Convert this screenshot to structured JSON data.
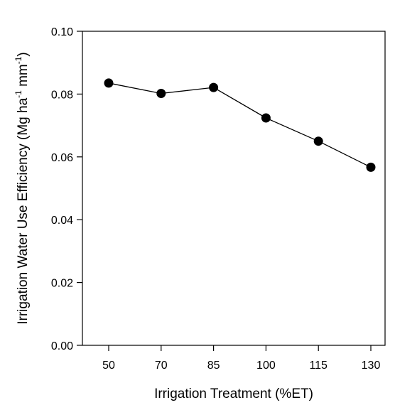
{
  "chart_data": {
    "type": "line",
    "categories": [
      "50",
      "70",
      "85",
      "100",
      "115",
      "130"
    ],
    "series": [
      {
        "values": [
          0.0835,
          0.0802,
          0.0821,
          0.0724,
          0.065,
          0.0567
        ]
      }
    ],
    "xlabel": "Irrigation Treatment (%ET)",
    "ylabel": {
      "main": "Irrigation Water  Use Efficiency (Mg ha",
      "sup1": "-1",
      "mid": " mm",
      "sup2": "-1",
      "end": ")"
    },
    "ylim": [
      0,
      0.1
    ],
    "yticks": [
      "0.00",
      "0.02",
      "0.04",
      "0.06",
      "0.08",
      "0.10"
    ],
    "grid": false,
    "marker": "filled-circle",
    "line_color": "#000000"
  }
}
